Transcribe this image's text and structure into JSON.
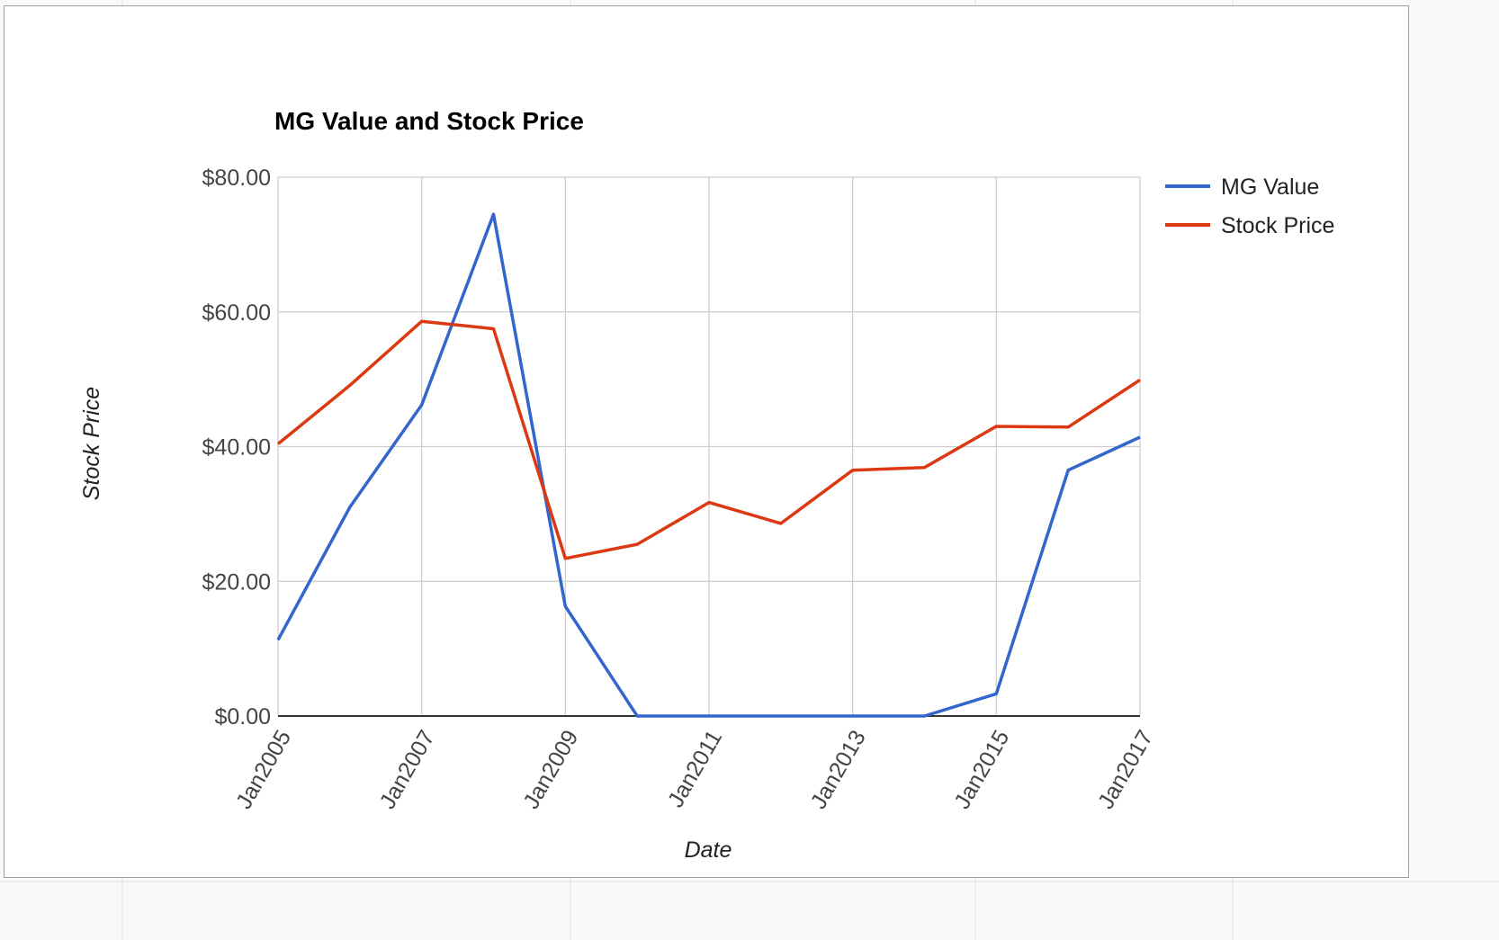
{
  "chart_data": {
    "type": "line",
    "title": "MG Value and Stock Price",
    "xlabel": "Date",
    "ylabel": "Stock Price",
    "x": [
      "2005-01",
      "2006-01",
      "2007-01",
      "2008-01",
      "2009-01",
      "2010-01",
      "2011-01",
      "2012-01",
      "2013-01",
      "2014-01",
      "2015-01",
      "2016-01",
      "2017-01"
    ],
    "x_tick_labels": [
      "Jan2005",
      "Jan2007",
      "Jan2009",
      "Jan2011",
      "Jan2013",
      "Jan2015",
      "Jan2017"
    ],
    "x_ticks": [
      "2005-01",
      "2007-01",
      "2009-01",
      "2011-01",
      "2013-01",
      "2015-01",
      "2017-01"
    ],
    "y_tick_labels": [
      "$0.00",
      "$20.00",
      "$40.00",
      "$60.00",
      "$80.00"
    ],
    "y_ticks": [
      0,
      20,
      40,
      60,
      80
    ],
    "ylim": [
      0,
      80
    ],
    "grid": true,
    "legend_position": "right",
    "series": [
      {
        "name": "MG Value",
        "color": "#3366cc",
        "values": [
          11.3,
          31.0,
          46.2,
          74.5,
          16.3,
          0.0,
          0.0,
          0.0,
          0.0,
          0.0,
          3.3,
          36.5,
          41.4
        ]
      },
      {
        "name": "Stock Price",
        "color": "#dc3912",
        "values": [
          40.4,
          49.1,
          58.6,
          57.5,
          23.4,
          25.5,
          31.7,
          28.6,
          36.5,
          36.9,
          43.0,
          42.9,
          49.9
        ]
      }
    ]
  }
}
